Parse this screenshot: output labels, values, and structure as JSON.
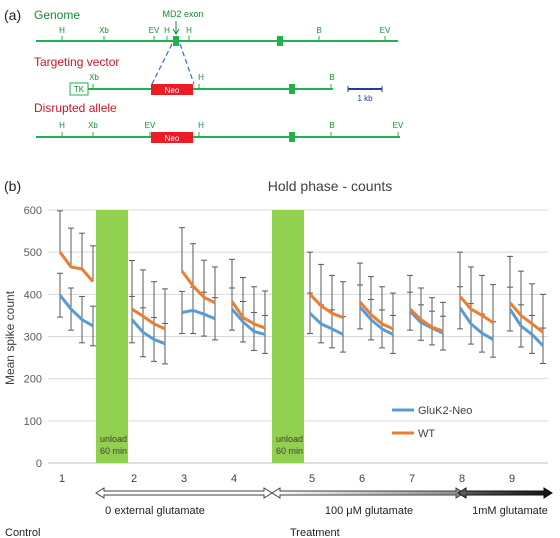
{
  "panel_a": {
    "panel_label": "(a)",
    "genome_label": "Genome",
    "targeting_label": "Targeting vector",
    "disrupted_label": "Disrupted allele",
    "exon_label": "MD2 exon",
    "neo_label": "Neo",
    "tk_label": "TK",
    "scale_label": "1 kb",
    "genome_sites": [
      "H",
      "Xb",
      "EV",
      "H",
      "H",
      "B",
      "EV"
    ],
    "targeting_sites": [
      "Xb",
      "H",
      "B"
    ],
    "disrupted_sites": [
      "H",
      "Xb",
      "EV",
      "H",
      "B",
      "EV"
    ],
    "colors": {
      "line": "#22b14c",
      "neo": "#ed1c24",
      "label": "#c0182b",
      "scale": "#1f3f9f",
      "text": "#1c8a36"
    }
  },
  "panel_b": {
    "panel_label": "(b)",
    "bottom_labels": {
      "control": "Control",
      "treatment": "Treatment"
    },
    "treatments": [
      {
        "label": "0 external glutamate"
      },
      {
        "label": "100 μM glutamate"
      },
      {
        "label": "1mM glutamate"
      }
    ]
  },
  "chart_data": {
    "type": "line",
    "title": "Hold phase - counts",
    "ylabel": "Mean spike count",
    "xlabel": "",
    "ylim": [
      0,
      600
    ],
    "yticks": [
      "0",
      "100",
      "200",
      "300",
      "400",
      "500",
      "600"
    ],
    "grid": true,
    "legend_position": "bottom-right",
    "x_tick_labels": [
      "1",
      "2",
      "3",
      "4",
      "5",
      "6",
      "7",
      "8",
      "9"
    ],
    "unload_label": [
      "unload",
      "60 min"
    ],
    "colors": {
      "wt": "#ed7d31",
      "gluk2": "#5b9bd5",
      "unload": "#92d050",
      "error": "#595959"
    },
    "series": [
      {
        "name": "GluK2-Neo",
        "segments": [
          {
            "values": [
              398,
              365,
              340,
              325
            ],
            "errors": [
              52,
              50,
              55,
              47
            ]
          },
          {
            "values": [
              340,
              310,
              293,
              283
            ],
            "errors": [
              55,
              58,
              52,
              48
            ]
          },
          {
            "values": [
              357,
              362,
              353,
              342
            ],
            "errors": [
              50,
              55,
              52,
              50
            ]
          },
          {
            "values": [
              365,
              335,
              312,
              305
            ],
            "errors": [
              50,
              48,
              45,
              45
            ]
          },
          {
            "values": [
              355,
              330,
              318,
              305
            ],
            "errors": [
              48,
              45,
              45,
              42
            ]
          },
          {
            "values": [
              370,
              340,
              318,
              305
            ],
            "errors": [
              52,
              48,
              45,
              45
            ]
          },
          {
            "values": [
              360,
              333,
              320,
              308
            ],
            "errors": [
              45,
              42,
              40,
              40
            ]
          },
          {
            "values": [
              368,
              330,
              308,
              293
            ],
            "errors": [
              50,
              48,
              45,
              42
            ]
          },
          {
            "values": [
              365,
              325,
              305,
              278
            ],
            "errors": [
              52,
              50,
              45,
              42
            ]
          }
        ]
      },
      {
        "name": "WT",
        "segments": [
          {
            "values": [
              500,
              465,
              460,
              430
            ],
            "errors": [
              98,
              92,
              85,
              85
            ]
          },
          {
            "values": [
              365,
              348,
              330,
              318
            ],
            "errors": [
              115,
              110,
              100,
              95
            ]
          },
          {
            "values": [
              455,
              420,
              393,
              380
            ],
            "errors": [
              103,
              100,
              88,
              85
            ]
          },
          {
            "values": [
              383,
              345,
              330,
              320
            ],
            "errors": [
              100,
              95,
              88,
              88
            ]
          },
          {
            "values": [
              400,
              373,
              355,
              345
            ],
            "errors": [
              100,
              98,
              90,
              85
            ]
          },
          {
            "values": [
              382,
              352,
              330,
              318
            ],
            "errors": [
              92,
              90,
              88,
              85
            ]
          },
          {
            "values": [
              365,
              340,
              322,
              313
            ],
            "errors": [
              80,
              75,
              70,
              68
            ]
          },
          {
            "values": [
              395,
              365,
              350,
              333
            ],
            "errors": [
              105,
              100,
              95,
              90
            ]
          },
          {
            "values": [
              380,
              350,
              330,
              310
            ],
            "errors": [
              110,
              105,
              95,
              90
            ]
          }
        ]
      }
    ]
  }
}
